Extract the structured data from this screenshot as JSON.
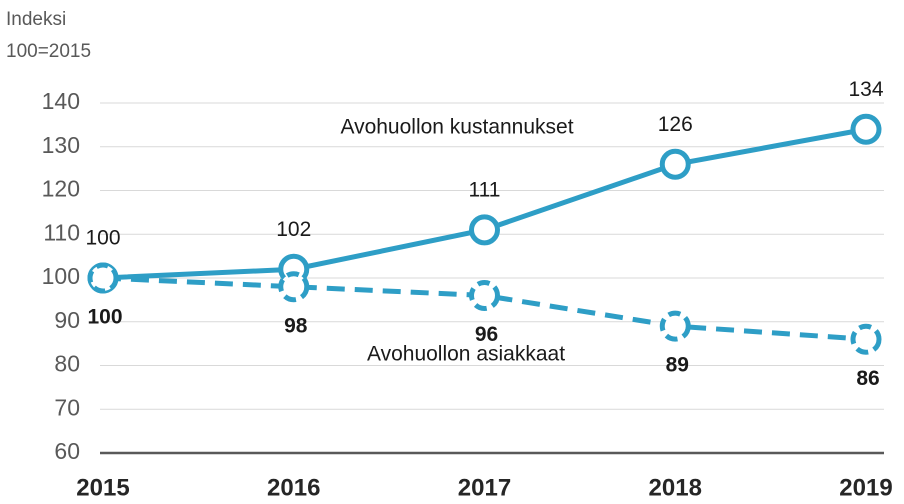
{
  "chart_data": {
    "type": "line",
    "ylabel": [
      "Indeksi",
      "100=2015"
    ],
    "categories": [
      "2015",
      "2016",
      "2017",
      "2018",
      "2019"
    ],
    "series": [
      {
        "name": "Avohuollon kustannukset",
        "color": "#2e9ec6",
        "dashed": false,
        "values": [
          100,
          102,
          111,
          126,
          134
        ]
      },
      {
        "name": "Avohuollon asiakkaat",
        "color": "#2e9ec6",
        "dashed": true,
        "values": [
          100,
          98,
          96,
          89,
          86
        ]
      }
    ],
    "ylim": [
      60,
      140
    ],
    "yticks": [
      60,
      70,
      80,
      90,
      100,
      110,
      120,
      130,
      140
    ],
    "grid": true
  }
}
